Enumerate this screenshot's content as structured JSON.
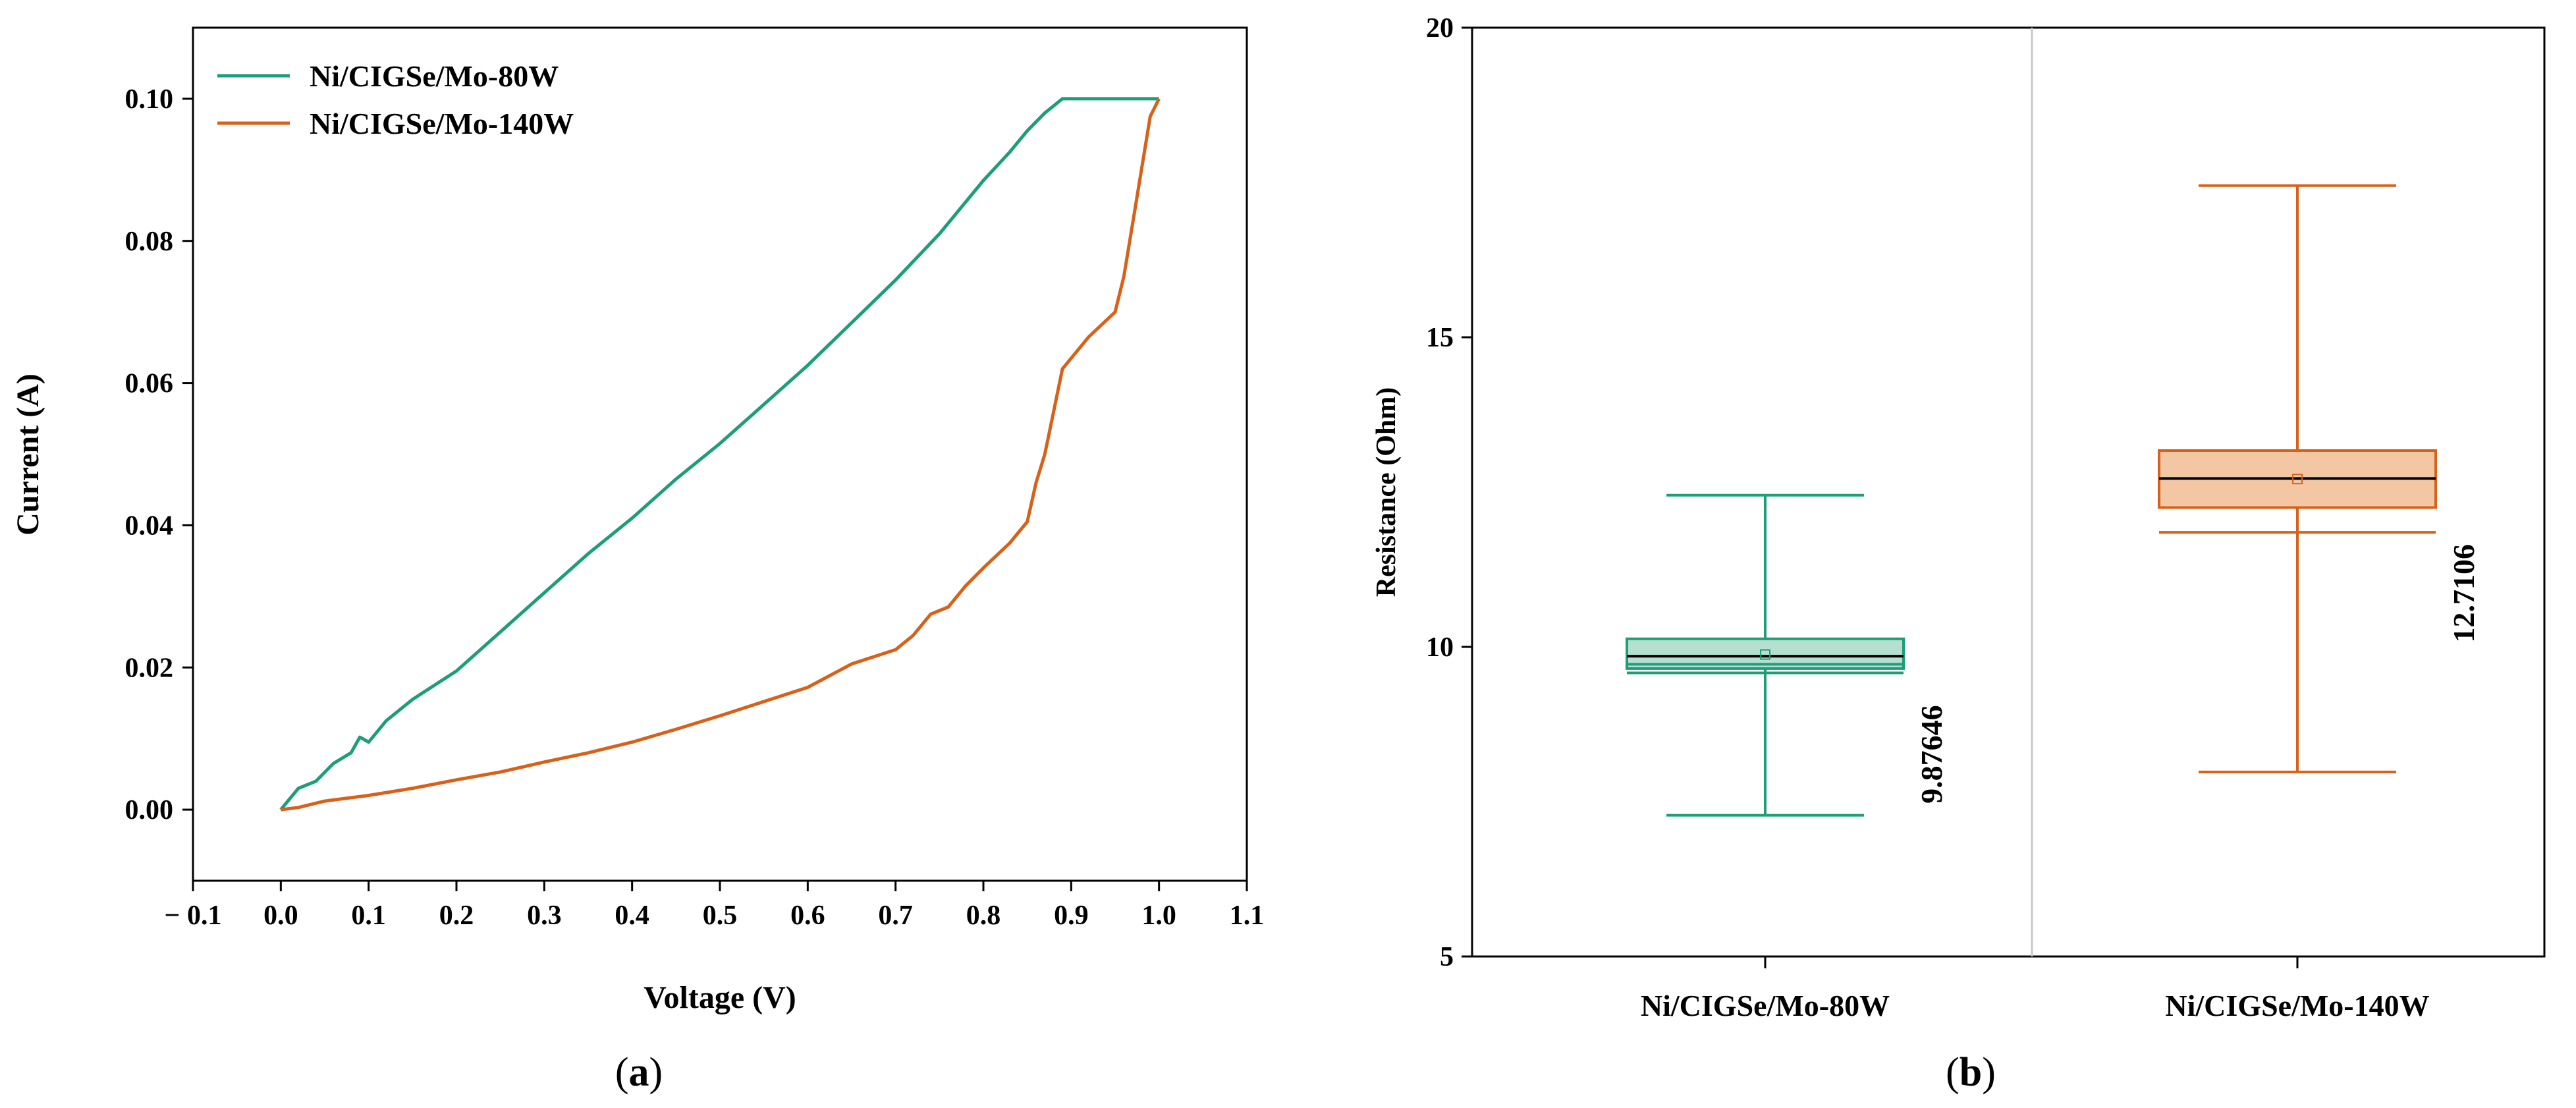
{
  "colors": {
    "green": "#1e9e78",
    "orange": "#d86119",
    "green_fill": "#b5dfcf",
    "orange_fill": "#f3c7a4"
  },
  "chart_data": [
    {
      "type": "line",
      "panel_label": "a",
      "xlabel": "Voltage (V)",
      "ylabel": "Current (A)",
      "xlim": [
        -0.1,
        1.1
      ],
      "ylim": [
        -0.01,
        0.11
      ],
      "xticks": [
        -0.1,
        0.0,
        0.1,
        0.2,
        0.3,
        0.4,
        0.5,
        0.6,
        0.7,
        0.8,
        0.9,
        1.0,
        1.1
      ],
      "xtick_labels": [
        "− 0.1",
        "0.0",
        "0.1",
        "0.2",
        "0.3",
        "0.4",
        "0.5",
        "0.6",
        "0.7",
        "0.8",
        "0.9",
        "1.0",
        "1.1"
      ],
      "yticks": [
        0.0,
        0.02,
        0.04,
        0.06,
        0.08,
        0.1
      ],
      "ytick_labels": [
        "0.00",
        "0.02",
        "0.04",
        "0.06",
        "0.08",
        "0.10"
      ],
      "legend_position": "top-left",
      "series": [
        {
          "name": "Ni/CIGSe/Mo-80W",
          "color": "#1e9e78",
          "x": [
            0.0,
            0.02,
            0.04,
            0.06,
            0.08,
            0.09,
            0.1,
            0.12,
            0.15,
            0.2,
            0.25,
            0.3,
            0.35,
            0.4,
            0.45,
            0.5,
            0.55,
            0.6,
            0.65,
            0.7,
            0.75,
            0.8,
            0.83,
            0.85,
            0.87,
            0.88,
            0.89,
            0.9,
            0.95,
            1.0
          ],
          "y": [
            0.0,
            0.003,
            0.004,
            0.0065,
            0.008,
            0.0102,
            0.0095,
            0.0125,
            0.0155,
            0.0195,
            0.025,
            0.0305,
            0.036,
            0.041,
            0.0465,
            0.0515,
            0.057,
            0.0625,
            0.0685,
            0.0745,
            0.081,
            0.0885,
            0.0925,
            0.0955,
            0.098,
            0.099,
            0.1,
            0.1,
            0.1,
            0.1
          ]
        },
        {
          "name": "Ni/CIGSe/Mo-140W",
          "color": "#d86119",
          "x": [
            0.0,
            0.02,
            0.05,
            0.1,
            0.15,
            0.2,
            0.25,
            0.3,
            0.35,
            0.4,
            0.45,
            0.5,
            0.55,
            0.6,
            0.65,
            0.7,
            0.72,
            0.74,
            0.76,
            0.78,
            0.8,
            0.83,
            0.85,
            0.86,
            0.87,
            0.88,
            0.89,
            0.9,
            0.92,
            0.95,
            0.96,
            0.97,
            0.98,
            0.99,
            1.0
          ],
          "y": [
            0.0,
            0.0003,
            0.0012,
            0.002,
            0.003,
            0.0042,
            0.0053,
            0.0067,
            0.008,
            0.0095,
            0.0113,
            0.0132,
            0.0152,
            0.0172,
            0.0205,
            0.0225,
            0.0245,
            0.0275,
            0.0285,
            0.0315,
            0.034,
            0.0375,
            0.0405,
            0.046,
            0.05,
            0.056,
            0.062,
            0.0635,
            0.0665,
            0.07,
            0.075,
            0.0825,
            0.09,
            0.0975,
            0.1
          ]
        }
      ]
    },
    {
      "type": "box",
      "panel_label": "b",
      "xlabel": "",
      "ylabel": "Resistance (Ohm)",
      "ylim": [
        5,
        20
      ],
      "yticks": [
        5,
        10,
        15,
        20
      ],
      "ytick_labels": [
        "5",
        "10",
        "15",
        "20"
      ],
      "categories": [
        "Ni/CIGSe/Mo-80W",
        "Ni/CIGSe/Mo-140W"
      ],
      "boxes": [
        {
          "name": "Ni/CIGSe/Mo-80W",
          "min": 7.28,
          "p1": 9.58,
          "q1": 9.65,
          "median": 9.85,
          "mean": 9.87646,
          "q3": 10.13,
          "p99": 9.72,
          "max": 12.45,
          "mean_label": "9.87646",
          "color": "#1e9e78",
          "fill": "#b5dfcf"
        },
        {
          "name": "Ni/CIGSe/Mo-140W",
          "min": 7.98,
          "p1": 11.85,
          "q1": 12.25,
          "median": 12.72,
          "mean": 12.7106,
          "q3": 13.17,
          "p99": 11.85,
          "max": 17.45,
          "mean_label": "12.7106",
          "color": "#d86119",
          "fill": "#f3c7a4"
        }
      ]
    }
  ]
}
